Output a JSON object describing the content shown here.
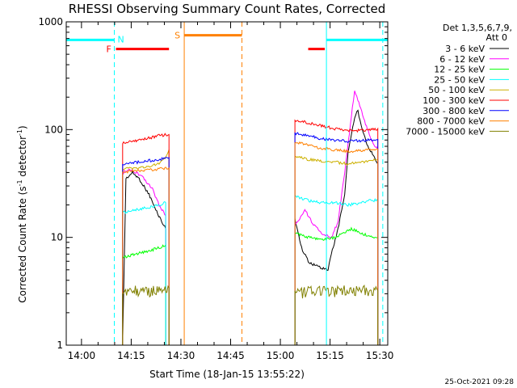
{
  "chart_data": {
    "type": "line",
    "title": "RHESSI Observing Summary Count Rates, Corrected",
    "xlabel": "Start Time (18-Jan-15 13:55:22)",
    "ylabel_main": "Corrected Count Rate (s",
    "ylabel_sup1": "-1",
    "ylabel_mid": " detector",
    "ylabel_sup2": "-1",
    "ylabel_end": ")",
    "x_unit": "minutes after 13:55:22",
    "xlim": [
      0,
      97
    ],
    "ylim": [
      1,
      1000
    ],
    "y_scale": "log",
    "x_tick_labels": [
      "14:00",
      "14:15",
      "14:30",
      "14:45",
      "15:00",
      "15:15",
      "15:30"
    ],
    "x_ticks": [
      4.6,
      19.6,
      34.6,
      49.6,
      64.6,
      79.6,
      94.6
    ],
    "y_tick_labels": [
      "1",
      "10",
      "100",
      "1000"
    ],
    "y_ticks": [
      1,
      10,
      100,
      1000
    ],
    "legend_title_1": "Det 1,3,5,6,7,9,",
    "legend_title_2": "Att 0",
    "legend_placement": "right",
    "timestamp": "25-Oct-2021 09:28",
    "series": [
      {
        "name": "3 - 6 keV",
        "color": "#000000",
        "values": [
          [
            17,
            1.0
          ],
          [
            18,
            35
          ],
          [
            20,
            40
          ],
          [
            22,
            35
          ],
          [
            25,
            25
          ],
          [
            27,
            18
          ],
          [
            30,
            12
          ],
          [
            69,
            15
          ],
          [
            71,
            8
          ],
          [
            73,
            6
          ],
          [
            75,
            5.5
          ],
          [
            79,
            5
          ],
          [
            80,
            7
          ],
          [
            82,
            12
          ],
          [
            84,
            25
          ],
          [
            85,
            60
          ],
          [
            87,
            130
          ],
          [
            88,
            150
          ],
          [
            89,
            110
          ],
          [
            91,
            70
          ],
          [
            93,
            55
          ],
          [
            94,
            48
          ]
        ]
      },
      {
        "name": "6 - 12 keV",
        "color": "#ff00ff",
        "values": [
          [
            17,
            40
          ],
          [
            19,
            42
          ],
          [
            21,
            40
          ],
          [
            23,
            36
          ],
          [
            26,
            28
          ],
          [
            28,
            20
          ],
          [
            30,
            16
          ],
          [
            69,
            13
          ],
          [
            71,
            16
          ],
          [
            72,
            18
          ],
          [
            74,
            14
          ],
          [
            77,
            11
          ],
          [
            80,
            10
          ],
          [
            82,
            14
          ],
          [
            84,
            40
          ],
          [
            86,
            130
          ],
          [
            87,
            230
          ],
          [
            88,
            190
          ],
          [
            90,
            120
          ],
          [
            92,
            80
          ],
          [
            94,
            65
          ]
        ]
      },
      {
        "name": "12 - 25 keV",
        "color": "#00ff00",
        "values": [
          [
            17,
            6.5
          ],
          [
            21,
            7
          ],
          [
            25,
            7.5
          ],
          [
            28,
            8
          ],
          [
            30,
            8.5
          ],
          [
            69,
            11
          ],
          [
            73,
            10
          ],
          [
            77,
            9.5
          ],
          [
            81,
            10
          ],
          [
            84,
            11
          ],
          [
            86,
            12
          ],
          [
            89,
            11
          ],
          [
            92,
            10
          ],
          [
            94,
            10
          ]
        ]
      },
      {
        "name": "25 - 50 keV",
        "color": "#00ffff",
        "values": [
          [
            17,
            17
          ],
          [
            21,
            18
          ],
          [
            25,
            19
          ],
          [
            28,
            20
          ],
          [
            30,
            21
          ],
          [
            69,
            24
          ],
          [
            73,
            22
          ],
          [
            77,
            21
          ],
          [
            81,
            21
          ],
          [
            85,
            20
          ],
          [
            89,
            21
          ],
          [
            92,
            22
          ],
          [
            94,
            22
          ]
        ]
      },
      {
        "name": "50 - 100 keV",
        "color": "#ccb000",
        "values": [
          [
            17,
            43
          ],
          [
            20,
            44
          ],
          [
            24,
            45
          ],
          [
            28,
            48
          ],
          [
            30,
            55
          ],
          [
            31,
            65
          ],
          [
            69,
            56
          ],
          [
            73,
            53
          ],
          [
            77,
            51
          ],
          [
            81,
            50
          ],
          [
            85,
            48
          ],
          [
            89,
            50
          ],
          [
            92,
            52
          ],
          [
            94,
            53
          ]
        ]
      },
      {
        "name": "100 - 300 keV",
        "color": "#ff0000",
        "values": [
          [
            17,
            75
          ],
          [
            20,
            78
          ],
          [
            24,
            82
          ],
          [
            28,
            88
          ],
          [
            31,
            90
          ],
          [
            69,
            122
          ],
          [
            73,
            116
          ],
          [
            77,
            108
          ],
          [
            81,
            102
          ],
          [
            85,
            98
          ],
          [
            89,
            98
          ],
          [
            92,
            100
          ],
          [
            94,
            102
          ]
        ]
      },
      {
        "name": "300 - 800 keV",
        "color": "#0000ff",
        "values": [
          [
            17,
            48
          ],
          [
            20,
            49
          ],
          [
            24,
            51
          ],
          [
            28,
            53
          ],
          [
            31,
            55
          ],
          [
            69,
            92
          ],
          [
            73,
            88
          ],
          [
            77,
            82
          ],
          [
            81,
            80
          ],
          [
            85,
            78
          ],
          [
            89,
            79
          ],
          [
            92,
            80
          ],
          [
            94,
            81
          ]
        ]
      },
      {
        "name": "800 - 7000 keV",
        "color": "#ff8000",
        "values": [
          [
            17,
            40
          ],
          [
            20,
            41
          ],
          [
            24,
            42
          ],
          [
            28,
            43
          ],
          [
            31,
            44
          ],
          [
            69,
            77
          ],
          [
            73,
            72
          ],
          [
            77,
            67
          ],
          [
            81,
            65
          ],
          [
            85,
            63
          ],
          [
            89,
            64
          ],
          [
            92,
            65
          ],
          [
            94,
            66
          ]
        ]
      },
      {
        "name": "7000 - 15000 keV",
        "color": "#808000",
        "values": [
          [
            17,
            3
          ],
          [
            20,
            3.2
          ],
          [
            24,
            3.1
          ],
          [
            28,
            3.3
          ],
          [
            31,
            3.4
          ],
          [
            69,
            3
          ],
          [
            73,
            3.1
          ],
          [
            77,
            3.2
          ],
          [
            81,
            3.1
          ],
          [
            85,
            3.3
          ],
          [
            89,
            3.2
          ],
          [
            92,
            3.1
          ],
          [
            94,
            3.2
          ]
        ]
      }
    ],
    "markers": {
      "night": {
        "label": "N",
        "color": "#00ffff",
        "y": 680,
        "bars": [
          [
            0,
            14.5
          ],
          [
            78.5,
            97
          ]
        ],
        "dashed_x": [
          14.5,
          95.5
        ],
        "solid_x": [
          78.5
        ]
      },
      "saa": {
        "label": "S",
        "color": "#ff8000",
        "y": 750,
        "bars": [
          [
            35.6,
            53
          ]
        ],
        "solid_x": [
          35.6
        ],
        "dashed_x": [
          53
        ]
      },
      "flare": {
        "label": "F",
        "color": "#ff0000",
        "y": 560,
        "bars": [
          [
            15,
            31
          ],
          [
            73,
            78
          ]
        ]
      }
    }
  }
}
